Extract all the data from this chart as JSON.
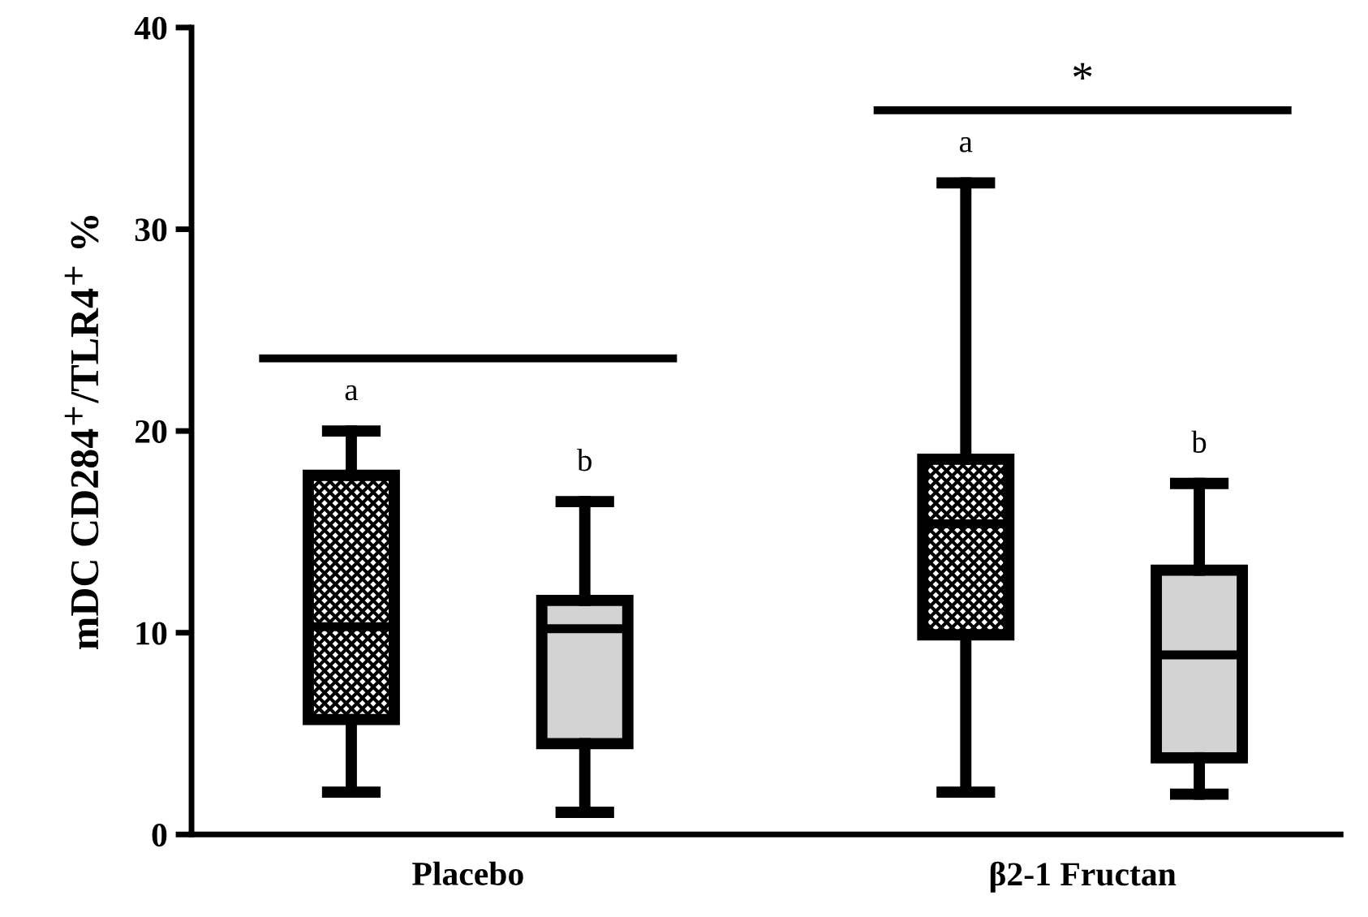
{
  "chart_data": {
    "type": "box",
    "ylabel": "mDC CD284$^{+}$/TLR4$^{+}$ %",
    "categories": [
      "Placebo",
      "β2-1 Fructan"
    ],
    "series": [
      {
        "color": "#000000",
        "boxes": [
          {
            "low": 2.1,
            "q1": 5.7,
            "median": 10.3,
            "q3": 17.8,
            "high": 20
          },
          {
            "low": 2.1,
            "q1": 9.9,
            "median": 15.4,
            "q3": 18.6,
            "high": 32.3
          }
        ]
      },
      {
        "color": "#d3d3d3",
        "boxes": [
          {
            "low": 1.1,
            "q1": 4.5,
            "median": 10.2,
            "q3": 11.6,
            "high": 16.5
          },
          {
            "low": 2.0,
            "q1": 3.8,
            "median": 8.9,
            "q3": 13.1,
            "high": 17.4
          }
        ]
      }
    ],
    "ylim": [
      0,
      40
    ],
    "yticks": [
      0,
      10,
      20,
      30,
      40
    ],
    "grid": false,
    "legend": false,
    "annotations": [
      "a",
      "b",
      "a",
      "b",
      "*"
    ]
  }
}
